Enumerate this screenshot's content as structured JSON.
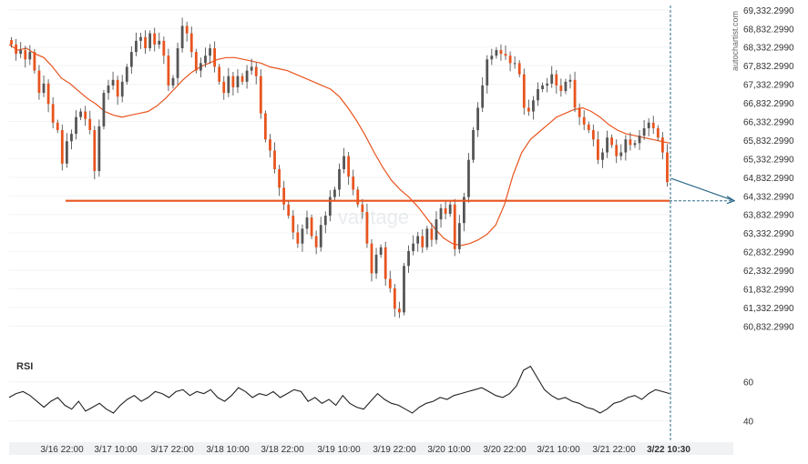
{
  "chart_data": {
    "type": "candlestick",
    "price_axis": {
      "ticks": [
        "69,332.2990",
        "68,832.2990",
        "68,332.2990",
        "67,832.2990",
        "67,332.2990",
        "66,832.2990",
        "66,332.2990",
        "65,832.2990",
        "65,332.2990",
        "64,832.2990",
        "64,332.2990",
        "63,832.2990",
        "63,332.2990",
        "62,832.2990",
        "62,332.2990",
        "61,832.2990",
        "61,332.2990",
        "60,832.2990"
      ],
      "range": [
        60500,
        69450
      ]
    },
    "time_axis": {
      "ticks": [
        "3/16 22:00",
        "3/17 10:00",
        "3/17 22:00",
        "3/18 10:00",
        "3/18 22:00",
        "3/19 10:00",
        "3/19 22:00",
        "3/20 10:00",
        "3/20 22:00",
        "3/21 10:00",
        "3/21 22:00",
        "3/22 10:30"
      ]
    },
    "price_series": [
      68400,
      68150,
      68250,
      68000,
      68200,
      67700,
      67100,
      67350,
      66800,
      66300,
      66100,
      65200,
      65800,
      66000,
      66450,
      66600,
      66400,
      66100,
      65000,
      66200,
      67100,
      67300,
      67450,
      67000,
      67400,
      67800,
      68200,
      68500,
      68600,
      68300,
      68700,
      68400,
      68500,
      68100,
      67300,
      67500,
      68300,
      68900,
      68700,
      68200,
      67700,
      67900,
      68100,
      68300,
      67800,
      67400,
      67100,
      67550,
      67250,
      67550,
      67400,
      67700,
      67800,
      67550,
      66550,
      65850,
      65550,
      65050,
      64550,
      64100,
      63800,
      63350,
      63050,
      63450,
      63750,
      63250,
      62950,
      63550,
      63800,
      64300,
      64500,
      65050,
      65400,
      64850,
      64500,
      64100,
      63900,
      63050,
      62250,
      62750,
      62950,
      62100,
      61850,
      61300,
      61200,
      62450,
      62850,
      63050,
      63250,
      62950,
      63450,
      63150,
      63700,
      64000,
      63850,
      64100,
      62900,
      63600,
      64300,
      65300,
      66100,
      66700,
      67300,
      68000,
      68100,
      68250,
      68150,
      68100,
      67900,
      67900,
      67600,
      66700,
      66600,
      66900,
      67200,
      67300,
      67350,
      67600,
      67300,
      67150,
      67400,
      67450,
      66700,
      66450,
      66250,
      66100,
      65850,
      65300,
      65500,
      65900,
      65700,
      65400,
      65500,
      65850,
      65700,
      65750,
      65950,
      66150,
      66300,
      66150,
      65900,
      65500,
      64700
    ],
    "moving_average": {
      "values": [
        68400,
        68250,
        68300,
        68150,
        68050,
        67800,
        67500,
        67350,
        67150,
        66950,
        66800,
        66600,
        66500,
        66450,
        66500,
        66550,
        66600,
        66750,
        66950,
        67200,
        67450,
        67650,
        67800,
        67900,
        68000,
        68050,
        68050,
        68000,
        67950,
        67900,
        67800,
        67750,
        67700,
        67600,
        67500,
        67400,
        67300,
        67200,
        67000,
        66700,
        66350,
        65950,
        65500,
        65100,
        64750,
        64500,
        64300,
        64050,
        63750,
        63450,
        63200,
        63050,
        63000,
        63050,
        63150,
        63300,
        63550,
        64100,
        64900,
        65500,
        65850,
        66050,
        66250,
        66450,
        66550,
        66650,
        66700,
        66600,
        66450,
        66250,
        66100,
        66000,
        65950,
        65900,
        65850,
        65800,
        65750
      ]
    },
    "horizontal_line": {
      "value": 64200,
      "color": "#e8541e"
    },
    "projection": {
      "from": 64800,
      "to": 64200
    },
    "series_color": "#555555",
    "ma_color": "#e8541e",
    "rsi": {
      "label": "RSI",
      "ticks": [
        "60",
        "40"
      ],
      "levels": [
        60,
        40
      ],
      "range": [
        30,
        72
      ],
      "values": [
        52,
        54,
        55,
        53,
        50,
        47,
        50,
        52,
        48,
        46,
        50,
        45,
        47,
        49,
        46,
        44,
        48,
        51,
        53,
        50,
        52,
        55,
        54,
        52,
        55,
        56,
        53,
        55,
        54,
        56,
        52,
        50,
        53,
        57,
        55,
        52,
        54,
        53,
        55,
        52,
        54,
        56,
        55,
        50,
        52,
        49,
        51,
        48,
        53,
        49,
        47,
        46,
        50,
        54,
        51,
        49,
        48,
        46,
        44,
        47,
        49,
        50,
        52,
        51,
        53,
        54,
        55,
        56,
        57,
        55,
        53,
        52,
        54,
        58,
        66,
        68,
        62,
        56,
        53,
        51,
        52,
        50,
        49,
        47,
        46,
        44,
        46,
        49,
        50,
        52,
        53,
        51,
        54,
        56,
        55,
        54
      ]
    }
  },
  "watermark": "vantage",
  "credit": "autochartist.com"
}
